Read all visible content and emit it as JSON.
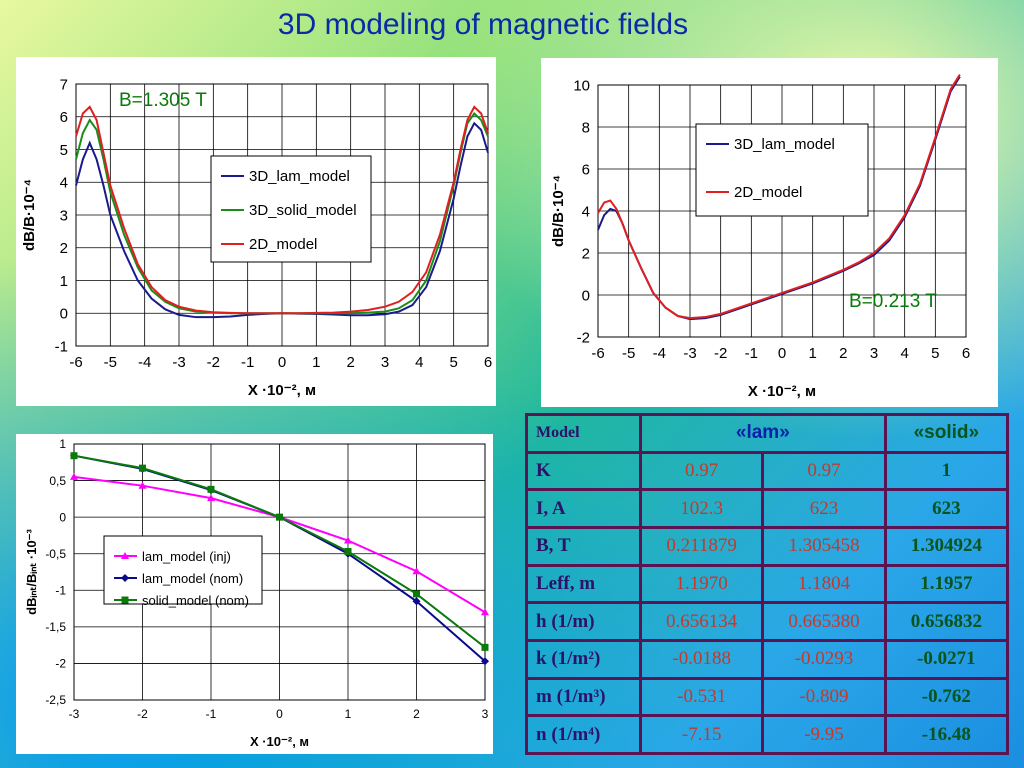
{
  "title": "3D modeling of magnetic fields",
  "chart_data": [
    {
      "type": "line",
      "xlabel": "X ·10⁻², м",
      "ylabel": "dB/B·10⁻⁴",
      "annotation": "B=1.305 T",
      "xlim": [
        -6,
        6
      ],
      "ylim": [
        -1,
        7
      ],
      "xticks": [
        "-6",
        "-5",
        "-4",
        "-3",
        "-2",
        "-1",
        "0",
        "1",
        "2",
        "3",
        "4",
        "5",
        "6"
      ],
      "yticks": [
        "-1",
        "0",
        "1",
        "2",
        "3",
        "4",
        "5",
        "6",
        "7"
      ],
      "series": [
        {
          "name": "3D_lam_model",
          "color": "#1a1a8c",
          "x": [
            -6,
            -5.8,
            -5.6,
            -5.4,
            -5.2,
            -5,
            -4.6,
            -4.2,
            -3.8,
            -3.4,
            -3,
            -2.5,
            -2,
            -1.5,
            -1,
            -0.5,
            0,
            0.5,
            1,
            1.5,
            2,
            2.5,
            3,
            3.4,
            3.8,
            4.2,
            4.6,
            5,
            5.2,
            5.4,
            5.6,
            5.8,
            6
          ],
          "y": [
            3.9,
            4.7,
            5.2,
            4.7,
            3.9,
            3.0,
            1.9,
            1.0,
            0.45,
            0.12,
            -0.05,
            -0.12,
            -0.12,
            -0.1,
            -0.05,
            -0.02,
            0,
            -0.01,
            -0.02,
            -0.04,
            -0.06,
            -0.06,
            -0.03,
            0.05,
            0.25,
            0.8,
            1.9,
            3.5,
            4.5,
            5.4,
            5.8,
            5.6,
            4.9
          ]
        },
        {
          "name": "3D_solid_model",
          "color": "#1a8c1a",
          "x": [
            -6,
            -5.8,
            -5.6,
            -5.4,
            -5.2,
            -5,
            -4.6,
            -4.2,
            -3.8,
            -3.4,
            -3,
            -2.5,
            -2,
            -1.5,
            -1,
            -0.5,
            0,
            0.5,
            1,
            1.5,
            2,
            2.5,
            3,
            3.4,
            3.8,
            4.2,
            4.6,
            5,
            5.2,
            5.4,
            5.6,
            5.8,
            6
          ],
          "y": [
            4.7,
            5.5,
            5.9,
            5.6,
            4.7,
            3.7,
            2.4,
            1.4,
            0.7,
            0.35,
            0.15,
            0.05,
            0.02,
            0,
            0,
            0,
            0,
            0,
            0,
            0,
            0,
            0.02,
            0.05,
            0.15,
            0.4,
            1.0,
            2.2,
            3.9,
            4.9,
            5.8,
            6.1,
            5.9,
            5.4
          ]
        },
        {
          "name": "2D_model",
          "color": "#e02020",
          "x": [
            -6,
            -5.8,
            -5.6,
            -5.4,
            -5.2,
            -5,
            -4.6,
            -4.2,
            -3.8,
            -3.4,
            -3,
            -2.5,
            -2,
            -1.5,
            -1,
            -0.5,
            0,
            0.5,
            1,
            1.5,
            2,
            2.5,
            3,
            3.4,
            3.8,
            4.2,
            4.6,
            5,
            5.2,
            5.4,
            5.6,
            5.8,
            6
          ],
          "y": [
            5.4,
            6.1,
            6.3,
            5.9,
            4.9,
            3.9,
            2.6,
            1.5,
            0.8,
            0.4,
            0.2,
            0.08,
            0.03,
            0.01,
            0,
            0,
            0,
            0,
            0.01,
            0.02,
            0.05,
            0.1,
            0.2,
            0.35,
            0.65,
            1.25,
            2.4,
            4.0,
            5.0,
            5.9,
            6.3,
            6.1,
            5.5
          ]
        }
      ],
      "legend": "center-right",
      "grid": true
    },
    {
      "type": "line",
      "xlabel": "X ·10⁻², м",
      "ylabel": "dB/B·10⁻⁴",
      "annotation": "B=0.213 T",
      "xlim": [
        -6,
        6
      ],
      "ylim": [
        -2,
        10
      ],
      "xticks": [
        "-6",
        "-5",
        "-4",
        "-3",
        "-2",
        "-1",
        "0",
        "1",
        "2",
        "3",
        "4",
        "5",
        "6"
      ],
      "yticks": [
        "-2",
        "0",
        "2",
        "4",
        "6",
        "8",
        "10"
      ],
      "series": [
        {
          "name": "3D_lam_model",
          "color": "#1a1a8c",
          "x": [
            -6,
            -5.8,
            -5.6,
            -5.4,
            -5.2,
            -5,
            -4.6,
            -4.2,
            -3.8,
            -3.4,
            -3,
            -2.5,
            -2,
            -1.5,
            -1,
            -0.5,
            0,
            0.5,
            1,
            1.5,
            2,
            2.5,
            3,
            3.5,
            4,
            4.5,
            5,
            5.5,
            5.8
          ],
          "y": [
            3.1,
            3.8,
            4.1,
            4.0,
            3.4,
            2.6,
            1.3,
            0.1,
            -0.6,
            -1.0,
            -1.15,
            -1.1,
            -0.95,
            -0.7,
            -0.45,
            -0.2,
            0.05,
            0.3,
            0.55,
            0.85,
            1.15,
            1.5,
            1.9,
            2.6,
            3.7,
            5.2,
            7.4,
            9.7,
            10.4
          ]
        },
        {
          "name": "2D_model",
          "color": "#e02020",
          "x": [
            -6,
            -5.8,
            -5.6,
            -5.4,
            -5.2,
            -5,
            -4.6,
            -4.2,
            -3.8,
            -3.4,
            -3,
            -2.5,
            -2,
            -1.5,
            -1,
            -0.5,
            0,
            0.5,
            1,
            1.5,
            2,
            2.5,
            3,
            3.5,
            4,
            4.5,
            5,
            5.5,
            5.8
          ],
          "y": [
            3.9,
            4.4,
            4.5,
            4.1,
            3.4,
            2.6,
            1.3,
            0.1,
            -0.6,
            -1.0,
            -1.1,
            -1.05,
            -0.9,
            -0.65,
            -0.4,
            -0.15,
            0.1,
            0.35,
            0.6,
            0.9,
            1.2,
            1.55,
            2.0,
            2.7,
            3.8,
            5.3,
            7.5,
            9.8,
            10.5
          ]
        }
      ],
      "legend": "top-right",
      "grid": true
    },
    {
      "type": "line",
      "xlabel": "X ·10⁻², м",
      "ylabel": "dBᵢₙₜ/Bᵢₙₜ ·10⁻³",
      "xlim": [
        -3,
        3
      ],
      "ylim": [
        -2.5,
        1
      ],
      "xticks": [
        "-3",
        "-2",
        "-1",
        "0",
        "1",
        "2",
        "3"
      ],
      "yticks": [
        "1",
        "0,5",
        "0",
        "-0,5",
        "-1",
        "-1,5",
        "-2",
        "-2,5"
      ],
      "series": [
        {
          "name": "lam_model (inj)",
          "color": "#ff00ff",
          "marker": "triangle",
          "x": [
            -3,
            -2,
            -1,
            0,
            1,
            2,
            3
          ],
          "y": [
            0.55,
            0.43,
            0.26,
            0,
            -0.32,
            -0.74,
            -1.3
          ]
        },
        {
          "name": "lam_model (nom)",
          "color": "#0a0a8c",
          "marker": "diamond",
          "x": [
            -3,
            -2,
            -1,
            0,
            1,
            2,
            3
          ],
          "y": [
            0.84,
            0.66,
            0.37,
            0,
            -0.5,
            -1.15,
            -1.97
          ]
        },
        {
          "name": "solid_model (nom)",
          "color": "#0a7a0a",
          "marker": "square",
          "x": [
            -3,
            -2,
            -1,
            0,
            1,
            2,
            3
          ],
          "y": [
            0.84,
            0.67,
            0.38,
            0,
            -0.47,
            -1.05,
            -1.78
          ]
        }
      ],
      "legend": "center-left",
      "grid": true
    }
  ],
  "table": {
    "header": {
      "model": "Model",
      "lam": "«lam»",
      "solid": "«solid»"
    },
    "rows": [
      {
        "label": "K",
        "lam1": "0.97",
        "lam2": "0.97",
        "solid": "1"
      },
      {
        "label": "I,  A",
        "lam1": "102.3",
        "lam2": "623",
        "solid": "623"
      },
      {
        "label": "B, T",
        "lam1": "0.211879",
        "lam2": "1.305458",
        "solid": "1.304924"
      },
      {
        "label": "Leff, m",
        "lam1": "1.1970",
        "lam2": "1.1804",
        "solid": "1.1957"
      },
      {
        "label": "h (1/m)",
        "lam1": "0.656134",
        "lam2": "0.665380",
        "solid": "0.656832"
      },
      {
        "label": "k (1/m²)",
        "lam1": "-0.0188",
        "lam2": "-0.0293",
        "solid": "-0.0271"
      },
      {
        "label": "m (1/m³)",
        "lam1": "-0.531",
        "lam2": "-0.809",
        "solid": "-0.762"
      },
      {
        "label": "n (1/m⁴)",
        "lam1": "-7.15",
        "lam2": "-9.95",
        "solid": "-16.48"
      }
    ]
  }
}
